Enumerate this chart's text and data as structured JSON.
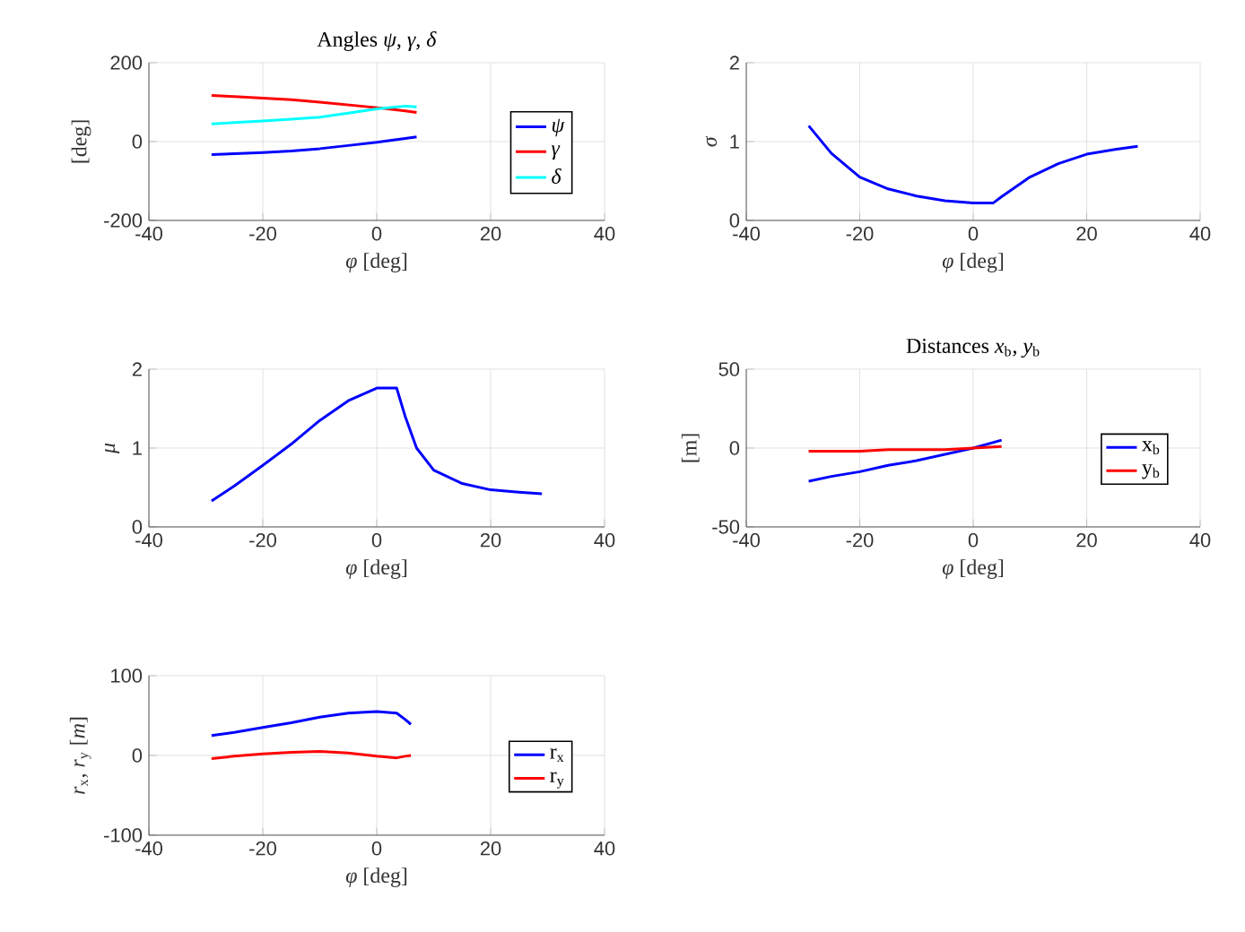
{
  "chart_data": [
    {
      "type": "line",
      "title": "Angles *ψ*, *γ*, *δ*",
      "xlabel": "*φ* [deg]",
      "ylabel": "[deg]",
      "xlim": [
        -40,
        40
      ],
      "ylim": [
        -200,
        200
      ],
      "xticks": [
        -40,
        -20,
        0,
        20,
        40
      ],
      "yticks": [
        -200,
        0,
        200
      ],
      "grid": true,
      "legend": "right",
      "series": [
        {
          "name": "*ψ*",
          "color": "#0000ff",
          "x": [
            -29,
            -25,
            -20,
            -15,
            -10,
            -5,
            0,
            5,
            7
          ],
          "values": [
            -33,
            -31,
            -28,
            -24,
            -18,
            -10,
            -2,
            8,
            12
          ]
        },
        {
          "name": "*γ*",
          "color": "#ff0000",
          "x": [
            -29,
            -25,
            -20,
            -15,
            -10,
            -5,
            0,
            5,
            7
          ],
          "values": [
            117,
            114,
            110,
            106,
            100,
            93,
            86,
            78,
            74
          ]
        },
        {
          "name": "*δ*",
          "color": "#00ffff",
          "x": [
            -29,
            -25,
            -20,
            -15,
            -10,
            -5,
            0,
            5,
            7
          ],
          "values": [
            45,
            48,
            52,
            57,
            62,
            72,
            83,
            90,
            88
          ]
        }
      ]
    },
    {
      "type": "line",
      "xlabel": "*φ* [deg]",
      "ylabel": "*σ*",
      "xlim": [
        -40,
        40
      ],
      "ylim": [
        0,
        2
      ],
      "xticks": [
        -40,
        -20,
        0,
        20,
        40
      ],
      "yticks": [
        0,
        1,
        2
      ],
      "grid": true,
      "series": [
        {
          "color": "#0000ff",
          "x": [
            -29,
            -25,
            -20,
            -15,
            -10,
            -5,
            0,
            3.5,
            5,
            10,
            15,
            20,
            25,
            29
          ],
          "values": [
            1.2,
            0.85,
            0.55,
            0.4,
            0.31,
            0.25,
            0.22,
            0.22,
            0.3,
            0.55,
            0.72,
            0.84,
            0.9,
            0.94
          ]
        }
      ]
    },
    {
      "type": "line",
      "xlabel": "*φ* [deg]",
      "ylabel": "*μ*",
      "xlim": [
        -40,
        40
      ],
      "ylim": [
        0,
        2
      ],
      "xticks": [
        -40,
        -20,
        0,
        20,
        40
      ],
      "yticks": [
        0,
        1,
        2
      ],
      "grid": true,
      "series": [
        {
          "color": "#0000ff",
          "x": [
            -29,
            -25,
            -20,
            -15,
            -10,
            -5,
            0,
            3.5,
            5,
            7,
            10,
            15,
            20,
            25,
            29
          ],
          "values": [
            0.33,
            0.52,
            0.78,
            1.05,
            1.35,
            1.6,
            1.76,
            1.76,
            1.4,
            1.0,
            0.72,
            0.55,
            0.47,
            0.44,
            0.42
          ]
        }
      ]
    },
    {
      "type": "line",
      "title": "Distances *x*$_{b}$, *y*$_{b}$",
      "xlabel": "*φ* [deg]",
      "ylabel": "[m]",
      "xlim": [
        -40,
        40
      ],
      "ylim": [
        -50,
        50
      ],
      "xticks": [
        -40,
        -20,
        0,
        20,
        40
      ],
      "yticks": [
        -50,
        0,
        50
      ],
      "grid": true,
      "legend": "right",
      "series": [
        {
          "name": "x$_{b}$",
          "color": "#0000ff",
          "x": [
            -29,
            -25,
            -20,
            -15,
            -10,
            -5,
            0,
            5
          ],
          "values": [
            -21,
            -18,
            -15,
            -11,
            -8,
            -4,
            0,
            5
          ]
        },
        {
          "name": "y$_{b}$",
          "color": "#ff0000",
          "x": [
            -29,
            -25,
            -20,
            -15,
            -10,
            -5,
            0,
            5
          ],
          "values": [
            -2,
            -2,
            -2,
            -1,
            -1,
            -1,
            0,
            1
          ]
        }
      ]
    },
    {
      "type": "line",
      "xlabel": "*φ* [deg]",
      "ylabel": "*r*$_{x}$, *r*$_{y}$ [*m*]",
      "xlim": [
        -40,
        40
      ],
      "ylim": [
        -100,
        100
      ],
      "xticks": [
        -40,
        -20,
        0,
        20,
        40
      ],
      "yticks": [
        -100,
        0,
        100
      ],
      "grid": true,
      "legend": "right",
      "series": [
        {
          "name": "r$_{x}$",
          "color": "#0000ff",
          "x": [
            -29,
            -25,
            -20,
            -15,
            -10,
            -5,
            0,
            3.5,
            5,
            6
          ],
          "values": [
            25,
            29,
            35,
            41,
            48,
            53,
            55,
            53,
            45,
            39
          ]
        },
        {
          "name": "r$_{y}$",
          "color": "#ff0000",
          "x": [
            -29,
            -25,
            -20,
            -15,
            -10,
            -5,
            0,
            3.5,
            5,
            6
          ],
          "values": [
            -4,
            -1,
            2,
            4,
            5,
            3,
            -1,
            -3,
            -1,
            0
          ]
        }
      ]
    }
  ]
}
